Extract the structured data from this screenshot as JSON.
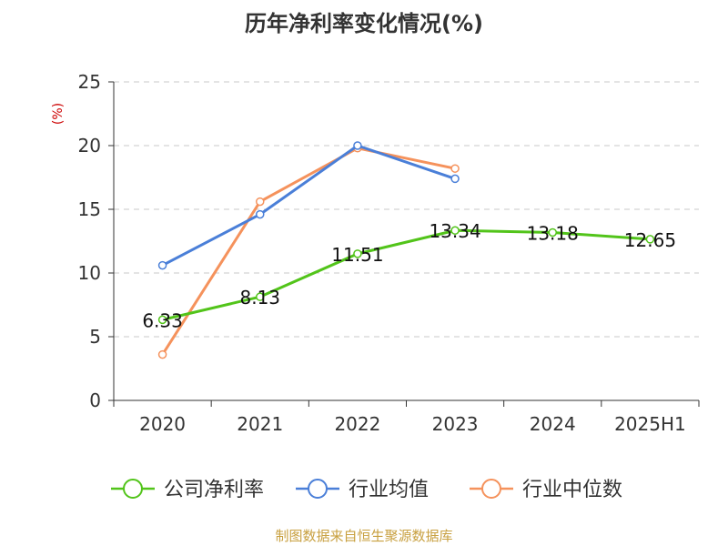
{
  "chart_data": {
    "type": "line",
    "title": "历年净利率变化情况(%)",
    "ylabel": "(%)",
    "xlabel": "",
    "categories": [
      "2020",
      "2021",
      "2022",
      "2023",
      "2024",
      "2025H1"
    ],
    "ylim": [
      0,
      25
    ],
    "yticks": [
      0,
      5,
      10,
      15,
      20,
      25
    ],
    "grid": true,
    "legend_position": "bottom",
    "series": [
      {
        "name": "公司净利率",
        "color": "#52c41a",
        "values": [
          6.33,
          8.13,
          11.51,
          13.34,
          13.18,
          12.65
        ],
        "labels": [
          "6.33",
          "8.13",
          "11.51",
          "13.34",
          "13.18",
          "12.65"
        ]
      },
      {
        "name": "行业均值",
        "color": "#4a7fd8",
        "values": [
          10.6,
          14.6,
          20.0,
          17.4,
          null,
          null
        ]
      },
      {
        "name": "行业中位数",
        "color": "#f5925c",
        "values": [
          3.6,
          15.6,
          19.8,
          18.2,
          null,
          null
        ]
      }
    ],
    "source": "制图数据来自恒生聚源数据库"
  }
}
